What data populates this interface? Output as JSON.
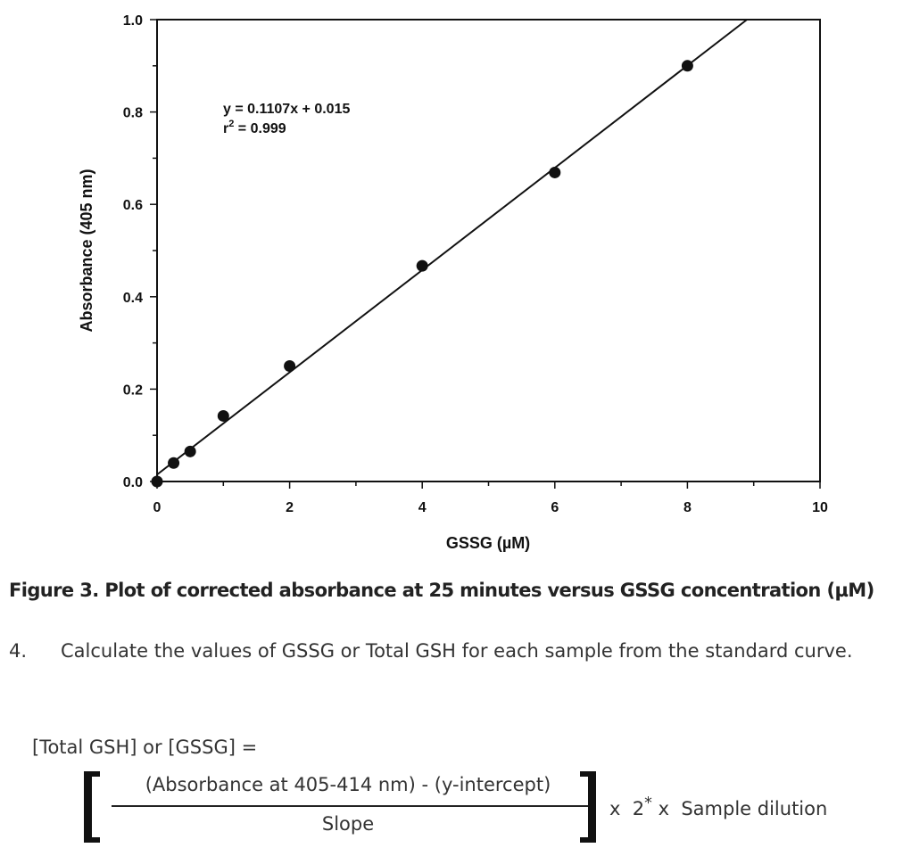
{
  "chart_data": {
    "type": "scatter",
    "xlabel": "GSSG (µM)",
    "ylabel": "Absorbance (405 nm)",
    "xlim": [
      0,
      10
    ],
    "ylim": [
      0,
      1.0
    ],
    "x_ticks": [
      "0",
      "2",
      "4",
      "6",
      "8",
      "10"
    ],
    "y_ticks": [
      "0.0",
      "0.2",
      "0.4",
      "0.6",
      "0.8",
      "1.0"
    ],
    "grid": false,
    "series": [
      {
        "x": [
          0,
          0.25,
          0.5,
          1,
          2,
          4,
          6,
          8
        ],
        "y": [
          0.0,
          0.04,
          0.065,
          0.142,
          0.25,
          0.467,
          0.669,
          0.9
        ]
      }
    ],
    "fit": {
      "slope": 0.1107,
      "intercept": 0.015
    },
    "annotation": {
      "equation": "y = 0.1107x + 0.015",
      "r2_prefix": "r",
      "r2_sup": "2",
      "r2_value": " = 0.999"
    }
  },
  "caption": "Figure 3.  Plot of corrected absorbance at 25 minutes versus GSSG concentration (µM)",
  "step": {
    "number": "4.",
    "text": "Calculate the values of GSSG or Total GSH for each sample from the standard curve."
  },
  "formula": {
    "lhs": "[Total GSH] or [GSSG] =",
    "numerator": "(Absorbance at 405-414 nm) - (y-intercept)",
    "denominator": "Slope",
    "tail_prefix": "x  2",
    "tail_sup": "*",
    "tail_suffix": " x  Sample dilution"
  }
}
